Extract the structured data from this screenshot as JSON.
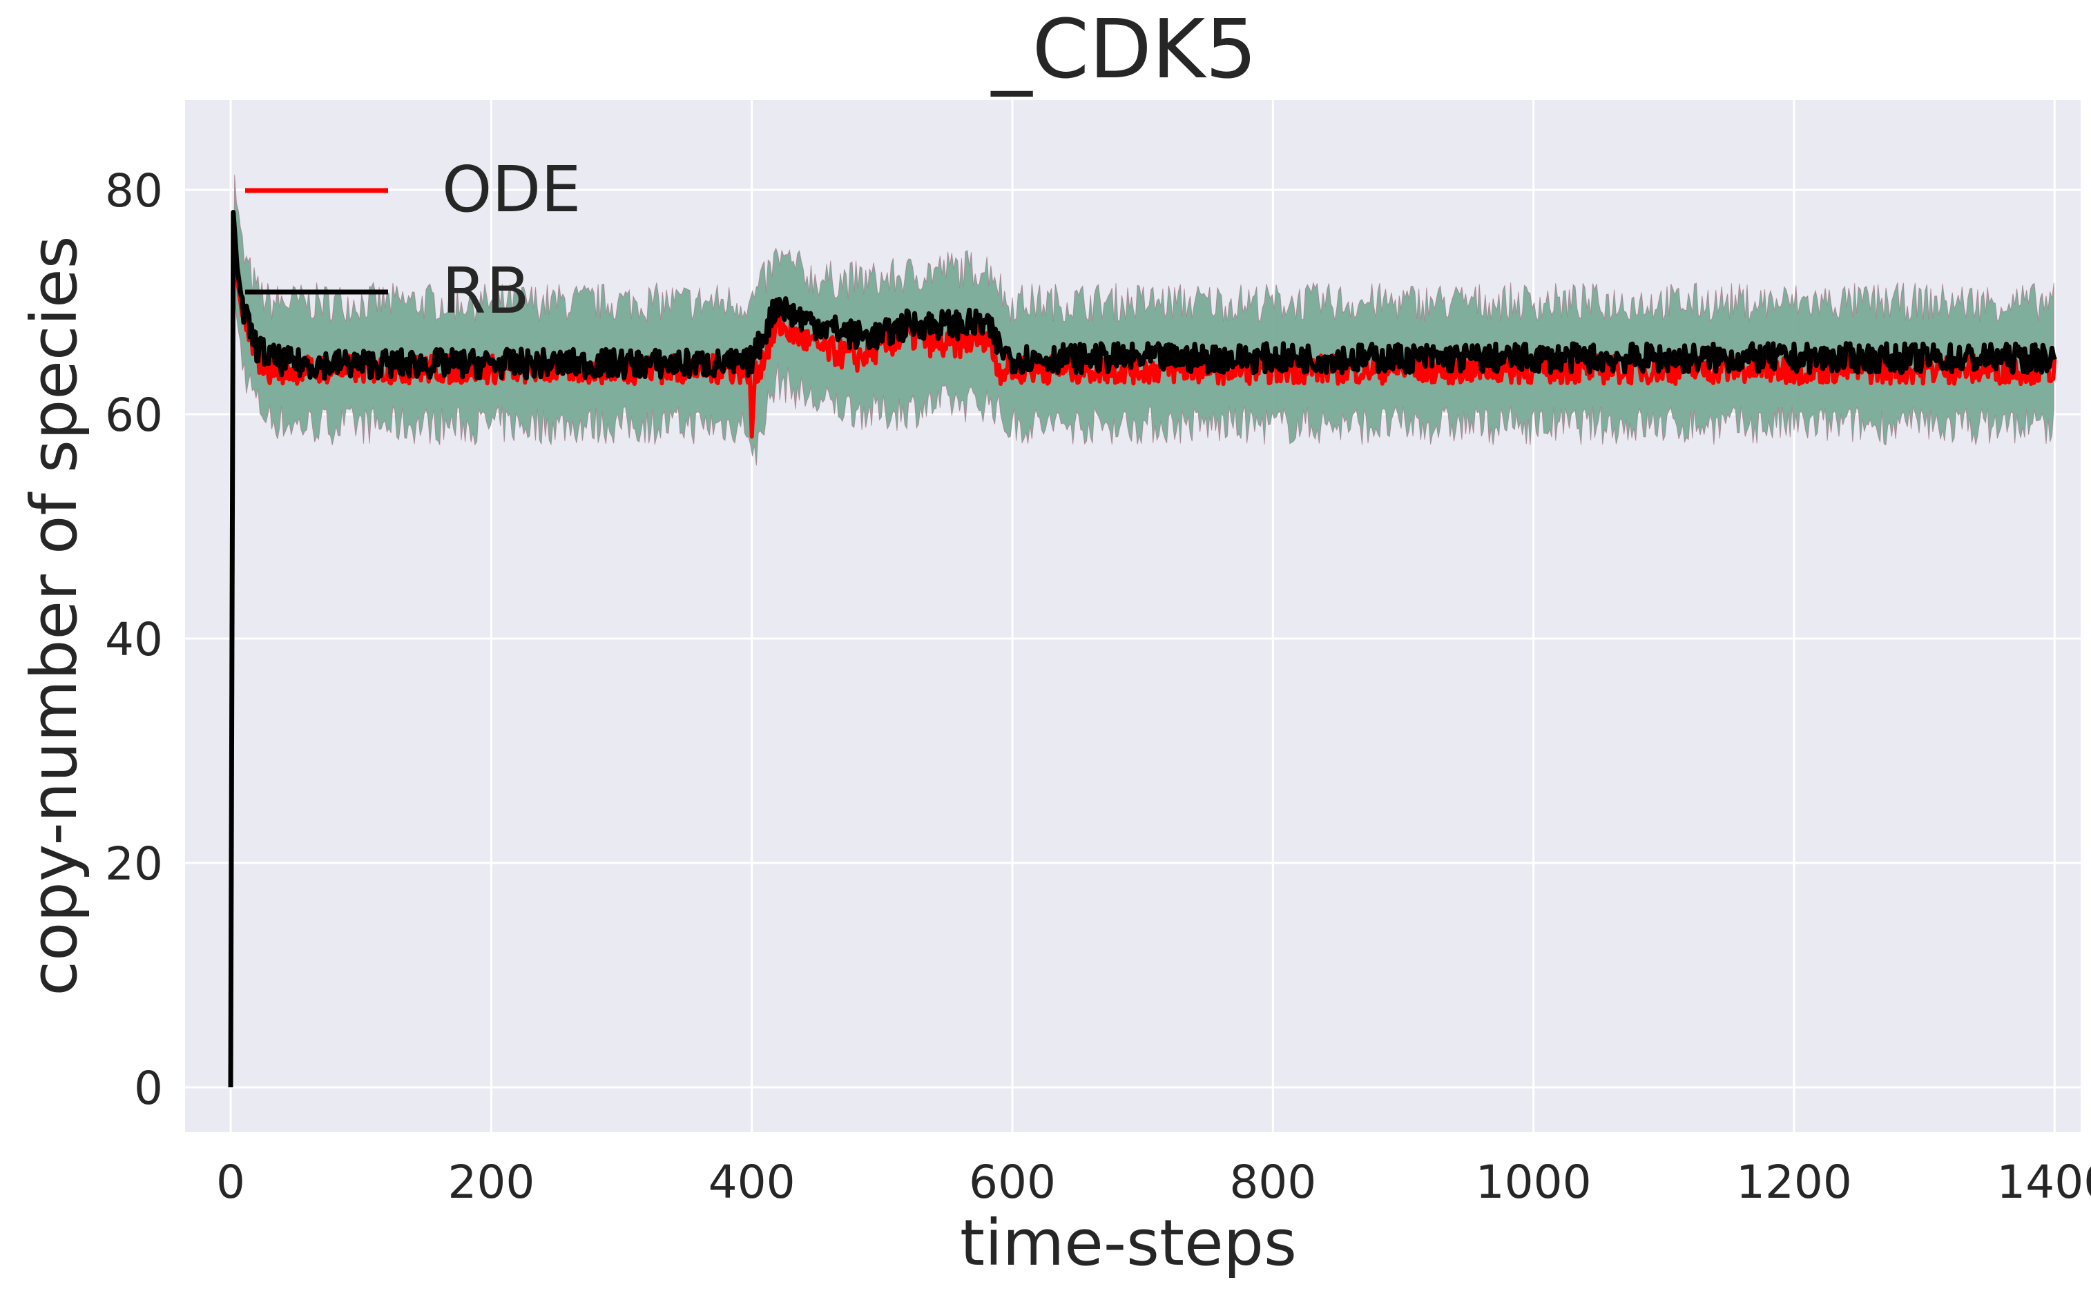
{
  "chart_data": {
    "type": "line",
    "title": "_CDK5",
    "xlabel": "time-steps",
    "ylabel": "copy-number of species",
    "xlim": [
      -35,
      1420
    ],
    "ylim": [
      -4,
      88
    ],
    "xticks": [
      0,
      200,
      400,
      600,
      800,
      1000,
      1200,
      1400
    ],
    "xtick_labels": [
      "0",
      "200",
      "400",
      "600",
      "800",
      "1000",
      "1200",
      "1400"
    ],
    "yticks": [
      0,
      20,
      40,
      60,
      80
    ],
    "ytick_labels": [
      "0",
      "20",
      "40",
      "60",
      "80"
    ],
    "grid": true,
    "legend_position": "top-left",
    "background": "#eaeaf2",
    "series": [
      {
        "name": "ODE",
        "color": "#ff0000",
        "x": [
          0,
          2,
          5,
          10,
          20,
          30,
          50,
          100,
          150,
          200,
          250,
          300,
          350,
          398,
          400,
          402,
          405,
          420,
          450,
          480,
          500,
          520,
          550,
          580,
          590,
          600,
          700,
          800,
          900,
          1000,
          1100,
          1200,
          1300,
          1400
        ],
        "values": [
          0,
          78,
          72,
          68,
          65,
          64,
          64,
          64,
          64,
          64,
          64,
          64,
          64,
          64,
          58,
          63,
          64,
          68,
          66,
          65,
          66,
          67,
          66,
          67,
          64,
          64,
          64,
          64,
          64,
          64,
          64,
          64,
          64,
          64
        ]
      },
      {
        "name": "RB",
        "color": "#000000",
        "x": [
          0,
          2,
          5,
          10,
          20,
          30,
          50,
          100,
          150,
          200,
          250,
          300,
          350,
          398,
          400,
          405,
          420,
          430,
          450,
          480,
          500,
          520,
          550,
          580,
          590,
          600,
          700,
          800,
          900,
          1000,
          1100,
          1200,
          1300,
          1400
        ],
        "values": [
          0,
          78,
          73,
          69,
          66,
          65,
          64.5,
          64.5,
          64.5,
          64.5,
          64.5,
          64.5,
          64.5,
          64.5,
          65,
          66,
          70,
          69,
          68,
          67,
          67,
          68,
          68,
          68,
          66,
          65,
          65,
          65,
          65,
          65,
          65,
          65,
          65,
          65
        ]
      }
    ],
    "band": {
      "color": "#7aab98",
      "x": [
        0,
        2,
        5,
        10,
        20,
        30,
        50,
        100,
        200,
        300,
        398,
        400,
        410,
        420,
        450,
        500,
        550,
        585,
        595,
        700,
        800,
        1000,
        1200,
        1400
      ],
      "upper": [
        0,
        83,
        78,
        74,
        71,
        70,
        70,
        70,
        70,
        70,
        70,
        70,
        72,
        74,
        72,
        72,
        73,
        73,
        70,
        70,
        70,
        70,
        70,
        70
      ],
      "lower": [
        0,
        72,
        68,
        64,
        61,
        59.5,
        59,
        59,
        59,
        59,
        59,
        55,
        60,
        63,
        61,
        60,
        61,
        61,
        59,
        59,
        59,
        59,
        59,
        59
      ]
    }
  }
}
